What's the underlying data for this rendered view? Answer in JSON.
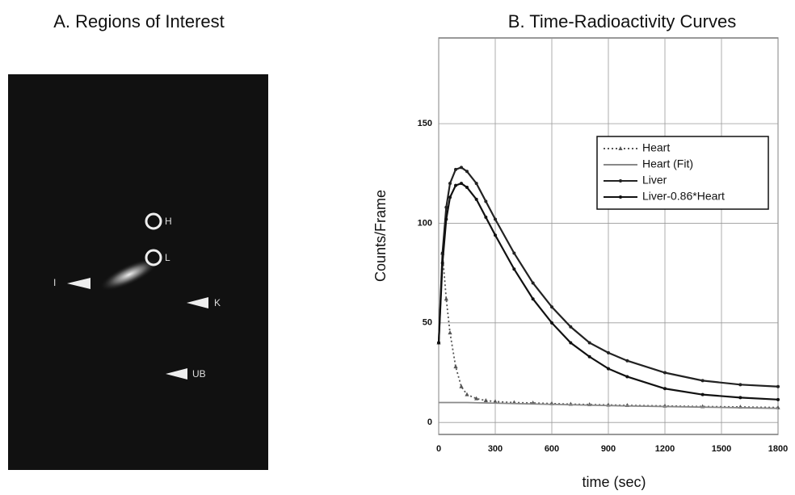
{
  "panel_a": {
    "title": "A. Regions of Interest",
    "labels": [
      "H",
      "L",
      "I",
      "K",
      "UB"
    ]
  },
  "chart_data": {
    "type": "line",
    "title": "B. Time-Radioactivity Curves",
    "xlabel": "time (sec)",
    "ylabel": "Counts/Frame",
    "x": [
      0,
      20,
      40,
      60,
      90,
      120,
      150,
      200,
      250,
      300,
      400,
      500,
      600,
      700,
      800,
      900,
      1000,
      1200,
      1400,
      1600,
      1800
    ],
    "series": [
      {
        "name": "Heart",
        "color": "#555555",
        "dash": "2,3",
        "marker": "triangle",
        "values": [
          40,
          85,
          62,
          45,
          28,
          18,
          14,
          12,
          11,
          10.5,
          10,
          9.8,
          9.5,
          9.2,
          9,
          8.8,
          8.6,
          8.3,
          8,
          7.8,
          7.5
        ]
      },
      {
        "name": "Heart (Fit)",
        "color": "#888888",
        "dash": "none",
        "marker": "none",
        "values": [
          10,
          10,
          10,
          10,
          10,
          10,
          10,
          9.9,
          9.8,
          9.7,
          9.5,
          9.3,
          9.1,
          8.9,
          8.7,
          8.5,
          8.3,
          8,
          7.7,
          7.4,
          7.1
        ]
      },
      {
        "name": "Liver",
        "color": "#222222",
        "dash": "none",
        "marker": "circle",
        "values": [
          40,
          85,
          108,
          120,
          127,
          128,
          126,
          120,
          111,
          102,
          85,
          70,
          58,
          48,
          40,
          35,
          31,
          25,
          21,
          19,
          18
        ]
      },
      {
        "name": "Liver-0.86*Heart",
        "color": "#111111",
        "dash": "none",
        "marker": "circle",
        "values": [
          40,
          80,
          102,
          113,
          119,
          120,
          118,
          112,
          103,
          94,
          77,
          62,
          50,
          40,
          33,
          27,
          23,
          17,
          14,
          12.5,
          11.5
        ]
      }
    ],
    "xlim": [
      0,
      1800
    ],
    "xticks": [
      0,
      300,
      600,
      900,
      1200,
      1500,
      1800
    ],
    "ylim": [
      -6,
      193
    ],
    "yticks": [
      0,
      50,
      100,
      150
    ],
    "grid": true,
    "legend": "upper right"
  }
}
